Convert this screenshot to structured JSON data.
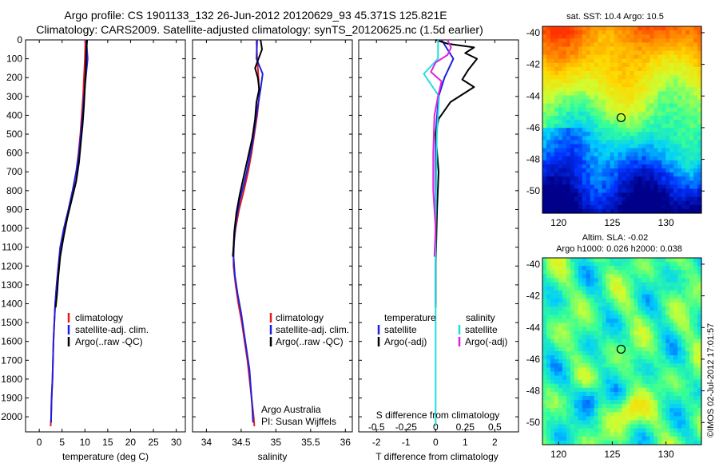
{
  "header": {
    "title_line1": "Argo profile: CS 1901133_132 26-Jun-2012 20120629_93 45.371S 125.821E",
    "title_line2": "Climatology: CARS2009. Satellite-adjusted climatology: synTS_20120625.nc (1.5d earlier)"
  },
  "footer": {
    "side_stamp": "©IMOS 02-Jul-2012 17:01:57"
  },
  "colors": {
    "climatology": "#e41a1c",
    "satellite": "#1f1fdf",
    "argo": "#000000",
    "salinity_satellite": "#22dddd",
    "salinity_argo": "#dd22dd"
  },
  "chart_data": [
    {
      "id": "temperature",
      "type": "line",
      "xlabel": "temperature (deg C)",
      "xticks": [
        "0",
        "5",
        "10",
        "15",
        "20",
        "25",
        "30"
      ],
      "xlim": [
        -3,
        32
      ],
      "ylim": [
        0,
        2080
      ],
      "yticks": [
        "0",
        "100",
        "200",
        "300",
        "400",
        "500",
        "600",
        "700",
        "800",
        "900",
        "1000",
        "1100",
        "1200",
        "1300",
        "1400",
        "1500",
        "1600",
        "1700",
        "1800",
        "1900",
        "2000"
      ],
      "legend": {
        "placement": "lower-center",
        "entries": [
          "climatology",
          "satellite-adj. clim.",
          "Argo(..raw -QC)"
        ]
      },
      "series": [
        {
          "name": "climatology",
          "color": "#e41a1c",
          "points": [
            [
              10.1,
              0
            ],
            [
              10.0,
              100
            ],
            [
              9.8,
              200
            ],
            [
              9.6,
              300
            ],
            [
              9.3,
              400
            ],
            [
              9.0,
              500
            ],
            [
              8.6,
              600
            ],
            [
              8.1,
              700
            ],
            [
              7.3,
              800
            ],
            [
              6.4,
              900
            ],
            [
              5.4,
              1000
            ],
            [
              4.6,
              1100
            ],
            [
              4.2,
              1200
            ],
            [
              3.8,
              1300
            ],
            [
              3.5,
              1400
            ],
            [
              3.3,
              1500
            ],
            [
              3.1,
              1600
            ],
            [
              3.0,
              1700
            ],
            [
              2.9,
              1800
            ],
            [
              2.7,
              1900
            ],
            [
              2.6,
              2000
            ],
            [
              2.5,
              2050
            ]
          ]
        },
        {
          "name": "satellite-adj. clim.",
          "color": "#1f1fdf",
          "points": [
            [
              10.3,
              0
            ],
            [
              10.6,
              100
            ],
            [
              10.2,
              200
            ],
            [
              9.8,
              300
            ],
            [
              9.5,
              400
            ],
            [
              9.1,
              500
            ],
            [
              8.7,
              600
            ],
            [
              8.1,
              700
            ],
            [
              7.3,
              800
            ],
            [
              6.4,
              900
            ],
            [
              5.4,
              1000
            ],
            [
              4.6,
              1100
            ],
            [
              4.2,
              1200
            ],
            [
              3.8,
              1300
            ],
            [
              3.5,
              1400
            ],
            [
              3.3,
              1500
            ],
            [
              3.1,
              1600
            ],
            [
              3.0,
              1700
            ],
            [
              2.9,
              1800
            ],
            [
              2.7,
              1900
            ],
            [
              2.6,
              2000
            ],
            [
              2.6,
              2030
            ]
          ]
        },
        {
          "name": "Argo(..raw -QC)",
          "color": "#000000",
          "points": [
            [
              10.5,
              0
            ],
            [
              10.3,
              60
            ],
            [
              10.2,
              150
            ],
            [
              10.0,
              250
            ],
            [
              9.8,
              350
            ],
            [
              9.5,
              450
            ],
            [
              9.1,
              550
            ],
            [
              8.7,
              650
            ],
            [
              8.1,
              750
            ],
            [
              7.1,
              850
            ],
            [
              6.1,
              950
            ],
            [
              5.3,
              1050
            ],
            [
              4.6,
              1150
            ],
            [
              4.2,
              1250
            ],
            [
              3.9,
              1350
            ],
            [
              3.6,
              1420
            ]
          ]
        }
      ]
    },
    {
      "id": "salinity",
      "type": "line",
      "xlabel": "salinity",
      "xticks": [
        "34",
        "34.5",
        "35",
        "35.5",
        "36"
      ],
      "xlim": [
        33.8,
        36.1
      ],
      "ylim": [
        0,
        2080
      ],
      "legend": {
        "placement": "lower-center",
        "entries": [
          "climatology",
          "satellite-adj. clim.",
          "Argo(..raw -QC)"
        ]
      },
      "annotation_line1": "Argo Australia",
      "annotation_line2": "PI: Susan Wijffels",
      "series": [
        {
          "name": "climatology",
          "color": "#e41a1c",
          "points": [
            [
              34.72,
              0
            ],
            [
              34.73,
              100
            ],
            [
              34.75,
              200
            ],
            [
              34.76,
              300
            ],
            [
              34.73,
              400
            ],
            [
              34.69,
              500
            ],
            [
              34.65,
              600
            ],
            [
              34.6,
              700
            ],
            [
              34.54,
              800
            ],
            [
              34.47,
              900
            ],
            [
              34.42,
              1000
            ],
            [
              34.39,
              1100
            ],
            [
              34.39,
              1200
            ],
            [
              34.42,
              1300
            ],
            [
              34.46,
              1400
            ],
            [
              34.51,
              1500
            ],
            [
              34.55,
              1600
            ],
            [
              34.59,
              1700
            ],
            [
              34.62,
              1800
            ],
            [
              34.65,
              1900
            ],
            [
              34.68,
              2000
            ],
            [
              34.69,
              2050
            ]
          ]
        },
        {
          "name": "satellite-adj. clim.",
          "color": "#1f1fdf",
          "points": [
            [
              34.73,
              0
            ],
            [
              34.72,
              100
            ],
            [
              34.81,
              180
            ],
            [
              34.78,
              260
            ],
            [
              34.74,
              350
            ],
            [
              34.7,
              450
            ],
            [
              34.66,
              550
            ],
            [
              34.61,
              650
            ],
            [
              34.55,
              750
            ],
            [
              34.48,
              850
            ],
            [
              34.43,
              950
            ],
            [
              34.4,
              1050
            ],
            [
              34.39,
              1150
            ],
            [
              34.41,
              1250
            ],
            [
              34.45,
              1350
            ],
            [
              34.5,
              1450
            ],
            [
              34.54,
              1550
            ],
            [
              34.58,
              1650
            ],
            [
              34.62,
              1750
            ],
            [
              34.64,
              1850
            ],
            [
              34.66,
              1950
            ],
            [
              34.67,
              2030
            ]
          ]
        },
        {
          "name": "Argo(..raw -QC)",
          "color": "#000000",
          "points": [
            [
              34.78,
              0
            ],
            [
              34.8,
              50
            ],
            [
              34.75,
              100
            ],
            [
              34.7,
              150
            ],
            [
              34.74,
              200
            ],
            [
              34.76,
              260
            ],
            [
              34.72,
              330
            ],
            [
              34.7,
              420
            ],
            [
              34.66,
              520
            ],
            [
              34.6,
              620
            ],
            [
              34.54,
              720
            ],
            [
              34.48,
              820
            ],
            [
              34.43,
              920
            ],
            [
              34.4,
              1020
            ],
            [
              34.39,
              1100
            ],
            [
              34.38,
              1150
            ]
          ]
        }
      ]
    },
    {
      "id": "difference",
      "type": "line",
      "xlabel": "T difference from climatology",
      "xticks": [
        "-2",
        "-1",
        "0",
        "1",
        "2"
      ],
      "xlim": [
        -2.6,
        2.8
      ],
      "top_xlabel": "S difference from climatology",
      "top_xticks": [
        "-0.5",
        "-0.25",
        "0",
        "0.25",
        "0.5"
      ],
      "legend": {
        "placement": "lower-center",
        "col1_header": "temperature",
        "col2_header": "salinity",
        "entries": [
          "satellite",
          "Argo(-adj)",
          "satellite",
          "Argo(-adj)"
        ]
      },
      "series": [
        {
          "name": "satellite",
          "color": "#1f1fdf",
          "points": [
            [
              0.2,
              0
            ],
            [
              0.6,
              100
            ],
            [
              0.3,
              200
            ],
            [
              0.1,
              300
            ],
            [
              0.0,
              500
            ],
            [
              0.0,
              800
            ],
            [
              0.0,
              1400
            ]
          ]
        },
        {
          "name": "Argo(-adj)",
          "color": "#000000",
          "points": [
            [
              0.0,
              0
            ],
            [
              0.4,
              20
            ],
            [
              1.3,
              40
            ],
            [
              1.0,
              70
            ],
            [
              1.4,
              100
            ],
            [
              1.1,
              160
            ],
            [
              0.9,
              210
            ],
            [
              1.3,
              250
            ],
            [
              0.5,
              330
            ],
            [
              0.1,
              420
            ],
            [
              0.0,
              500
            ],
            [
              0.1,
              700
            ],
            [
              0.05,
              900
            ],
            [
              0.0,
              1200
            ],
            [
              0.0,
              1420
            ]
          ]
        },
        {
          "name": "satellite",
          "color": "#22dddd",
          "points": [
            [
              0.02,
              0
            ],
            [
              0.02,
              100
            ],
            [
              -0.1,
              180
            ],
            [
              0.03,
              300
            ],
            [
              0.01,
              500
            ],
            [
              0.0,
              1000
            ],
            [
              0.0,
              2050
            ]
          ]
        },
        {
          "name": "Argo(-adj)",
          "color": "#dd22dd",
          "points": [
            [
              0.1,
              0
            ],
            [
              0.13,
              40
            ],
            [
              0.1,
              80
            ],
            [
              0.0,
              120
            ],
            [
              -0.04,
              170
            ],
            [
              0.05,
              220
            ],
            [
              0.02,
              300
            ],
            [
              -0.01,
              400
            ],
            [
              -0.02,
              600
            ],
            [
              -0.02,
              800
            ],
            [
              0.0,
              1000
            ],
            [
              -0.01,
              1150
            ]
          ]
        }
      ]
    },
    {
      "id": "sst_map",
      "type": "heatmap",
      "title": "sat. SST: 10.4 Argo: 10.5",
      "xticks": [
        "120",
        "125",
        "130"
      ],
      "yticks": [
        "-40",
        "-42",
        "-44",
        "-46",
        "-48",
        "-50"
      ],
      "xlim": [
        118.5,
        133.3
      ],
      "ylim": [
        -51.4,
        -39.6
      ],
      "marker": [
        125.821,
        -45.371
      ],
      "colormap": [
        "#00008b",
        "#0033ff",
        "#00ccff",
        "#33ff99",
        "#ccff33",
        "#ffd700",
        "#ff8c00",
        "#ff3300"
      ]
    },
    {
      "id": "sla_map",
      "type": "heatmap",
      "title_line1": "Altim. SLA: -0.02",
      "title_line2": "Argo h1000: 0.026 h2000: 0.038",
      "xticks": [
        "120",
        "125",
        "130"
      ],
      "yticks": [
        "-40",
        "-42",
        "-44",
        "-46",
        "-48",
        "-50"
      ],
      "xlim": [
        118.5,
        133.3
      ],
      "ylim": [
        -51.4,
        -39.6
      ],
      "marker": [
        125.821,
        -45.371
      ],
      "colormap": [
        "#00008b",
        "#0033ff",
        "#00ccff",
        "#33ff99",
        "#ccff33",
        "#ffd700",
        "#ff8c00",
        "#ff3300"
      ]
    }
  ]
}
